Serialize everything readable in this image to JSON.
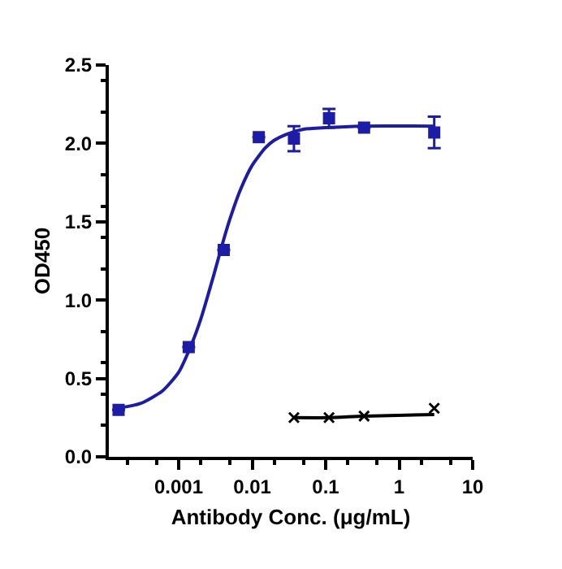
{
  "chart_data": {
    "type": "scatter",
    "xlabel": "Antibody Conc. (μg/mL)",
    "ylabel": "OD450",
    "log": "x",
    "grid": false,
    "xlim": [
      0.000112,
      10
    ],
    "xticks": [
      0.001,
      0.01,
      0.1,
      1,
      10
    ],
    "ylim": [
      0,
      2.5
    ],
    "yticks": [
      {
        "value": 0,
        "label": "0.0"
      },
      {
        "value": 0.5,
        "label": "0.5"
      },
      {
        "value": 1,
        "label": "1.0"
      },
      {
        "value": 1.5,
        "label": "1.5"
      },
      {
        "value": 2,
        "label": "2.0"
      },
      {
        "value": 2.5,
        "label": "2.5"
      }
    ],
    "series": [
      {
        "type": "line",
        "color": "#1c1ca6",
        "marker": "none",
        "line_style": "solid",
        "x": [
          0.00015,
          0.0003,
          0.0006,
          0.001,
          0.0015,
          0.002,
          0.003,
          0.004,
          0.005,
          0.007,
          0.01,
          0.015,
          0.02,
          0.03,
          0.05,
          0.1,
          0.3,
          3
        ],
        "values": [
          0.31,
          0.34,
          0.42,
          0.54,
          0.72,
          0.88,
          1.16,
          1.37,
          1.52,
          1.71,
          1.86,
          1.97,
          2.02,
          2.06,
          2.09,
          2.1,
          2.11,
          2.11
        ]
      },
      {
        "type": "line",
        "color": "#000000",
        "marker": "none",
        "line_style": "solid",
        "x": [
          0.037,
          0.111,
          0.333,
          3
        ],
        "values": [
          0.25,
          0.25,
          0.26,
          0.27
        ]
      },
      {
        "color": "#1c1ca6",
        "marker": "square",
        "x": [
          0.000152,
          0.00137,
          0.0041,
          0.0123,
          0.037,
          0.111,
          0.333,
          3
        ],
        "values": [
          0.3,
          0.7,
          1.32,
          2.04,
          2.03,
          2.16,
          2.1,
          2.07
        ],
        "errors": [
          null,
          null,
          null,
          null,
          0.08,
          0.06,
          null,
          0.1
        ]
      },
      {
        "color": "#000000",
        "marker": "cross",
        "x": [
          0.037,
          0.111,
          0.333,
          3
        ],
        "values": [
          0.25,
          0.25,
          0.26,
          0.31
        ]
      }
    ]
  }
}
